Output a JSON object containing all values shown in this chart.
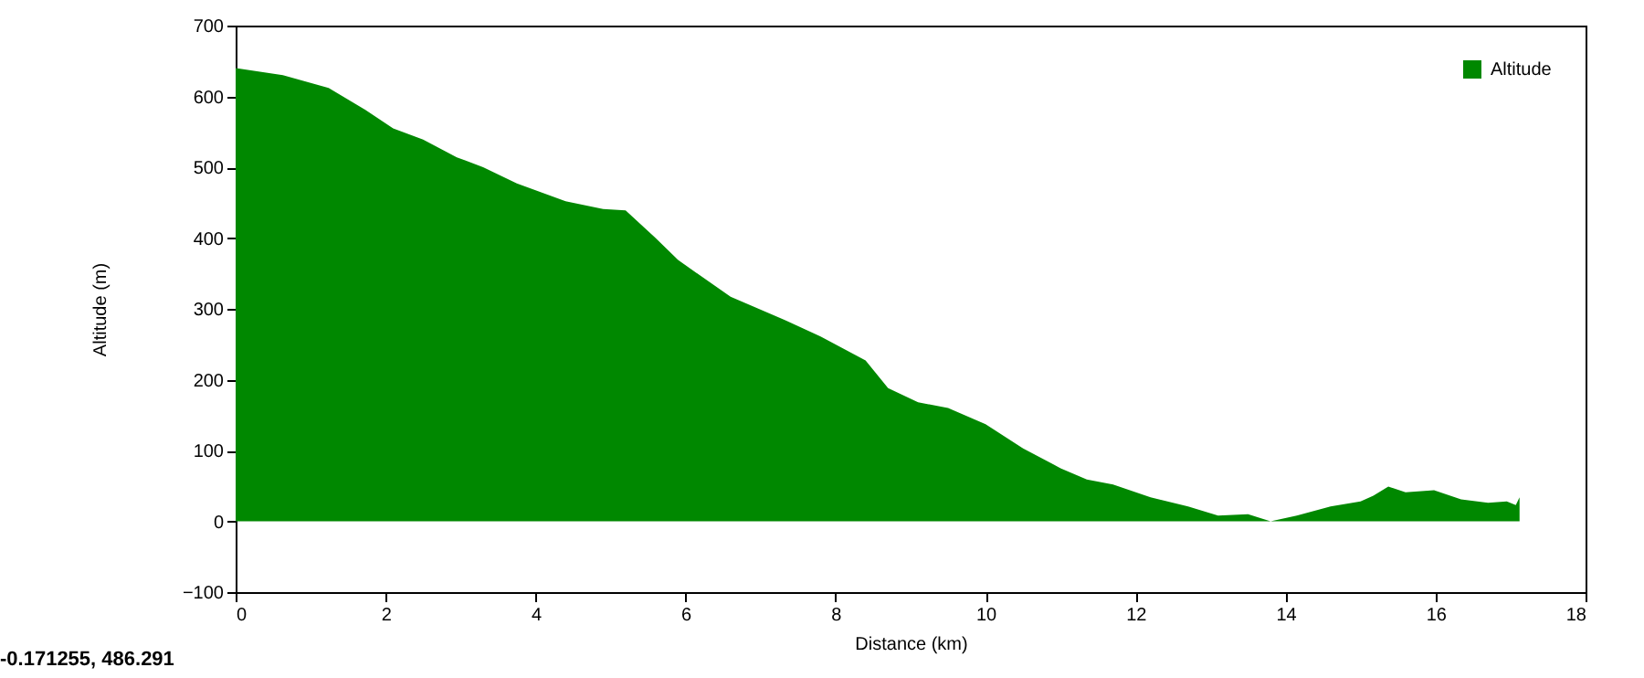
{
  "chart_data": {
    "type": "area",
    "xlabel": "Distance (km)",
    "ylabel": "Altitude (m)",
    "x": [
      0,
      0.63,
      1.24,
      1.73,
      2.1,
      2.5,
      2.95,
      3.3,
      3.75,
      4.4,
      4.9,
      5.2,
      5.6,
      5.9,
      6.6,
      7.33,
      7.8,
      8.4,
      8.7,
      9.1,
      9.5,
      10.0,
      10.5,
      11.0,
      11.35,
      11.7,
      12.2,
      12.7,
      13.1,
      13.5,
      13.8,
      14.15,
      14.6,
      15.0,
      15.17,
      15.37,
      15.6,
      15.98,
      16.34,
      16.7,
      16.95,
      17.07,
      17.12
    ],
    "series": [
      {
        "name": "Altitude",
        "color": "#008800",
        "values": [
          640,
          630,
          612,
          581,
          555,
          539,
          514,
          500,
          477,
          452,
          441,
          439,
          400,
          369,
          317,
          284,
          261,
          227,
          188,
          168,
          160,
          137,
          103,
          75,
          59,
          52,
          34,
          21,
          8,
          10,
          0,
          8,
          21,
          28,
          36,
          49,
          41,
          44,
          31,
          26,
          28,
          23,
          34
        ]
      }
    ],
    "xlim": [
      0,
      18
    ],
    "xticks": [
      0,
      2,
      4,
      6,
      8,
      10,
      12,
      14,
      16,
      18
    ],
    "ylim": [
      -100,
      700
    ],
    "yticks": [
      -100,
      0,
      100,
      200,
      300,
      400,
      500,
      600,
      700
    ],
    "grid": false,
    "legend": "top right",
    "annotations": [
      "-0.171255, 486.291"
    ]
  }
}
